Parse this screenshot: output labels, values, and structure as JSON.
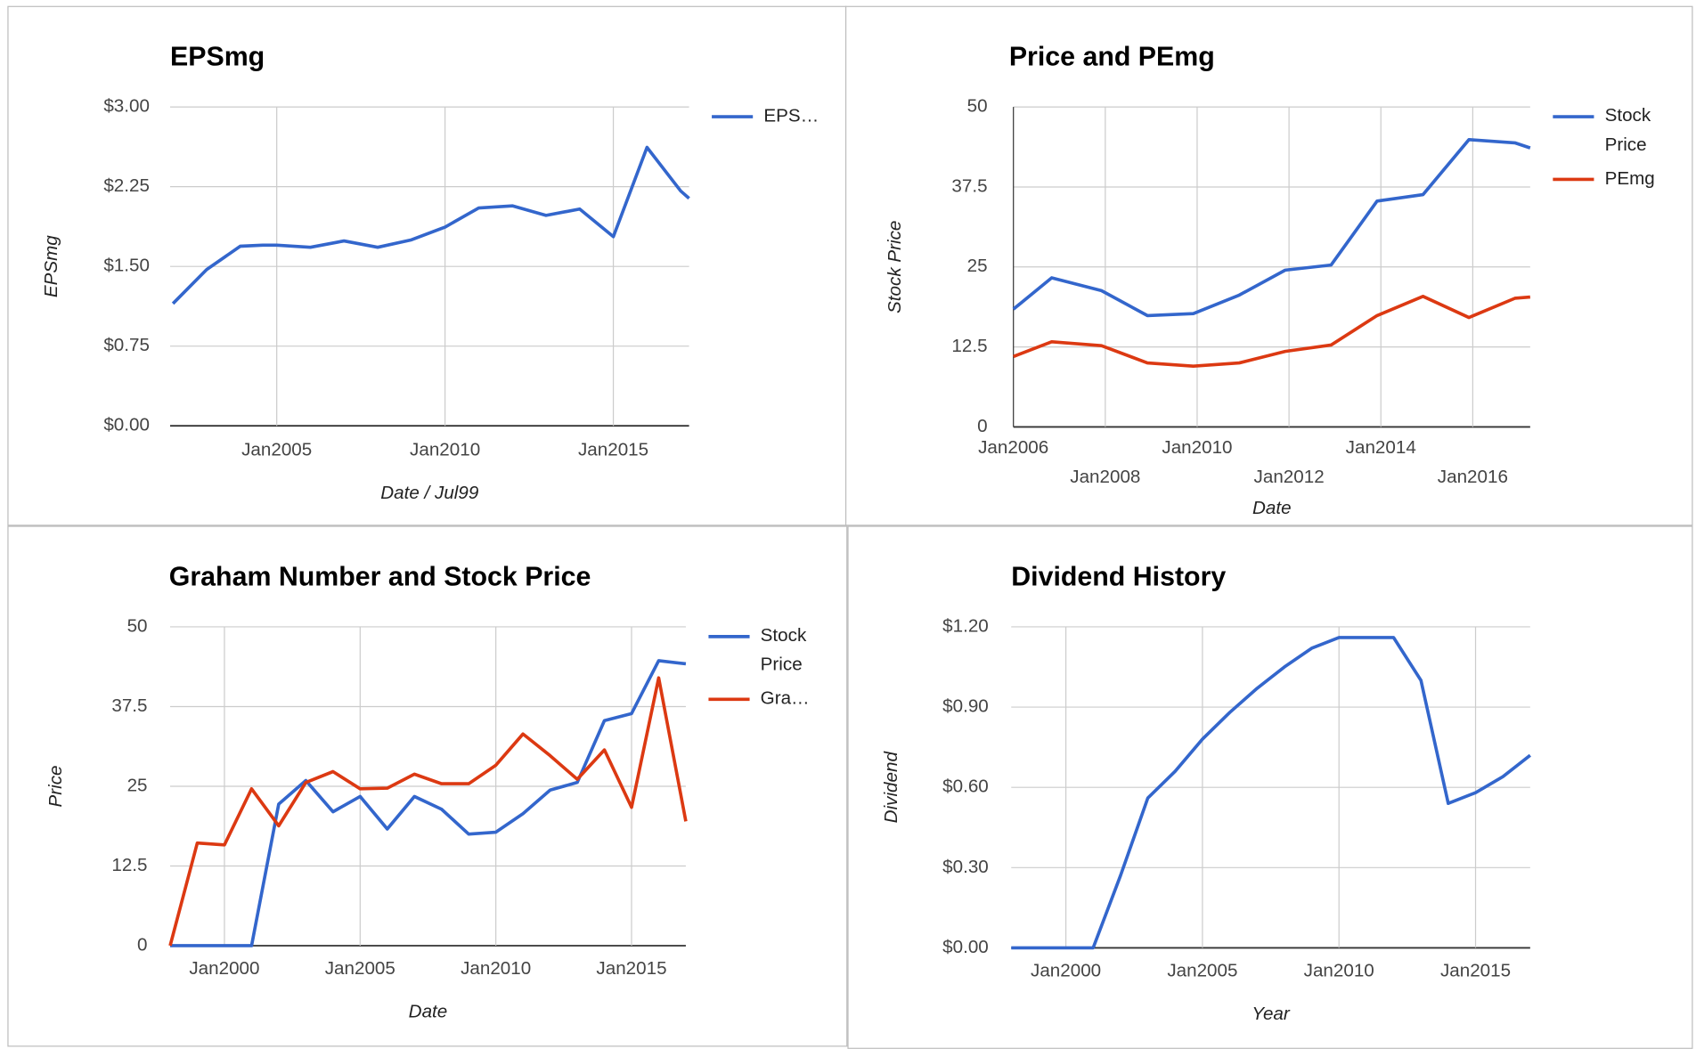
{
  "chart_data": [
    {
      "type": "line",
      "title": "EPSmg",
      "x_label": "Date / Jul99",
      "y_label": "EPSmg",
      "x": [
        "2001-12",
        "2002-12",
        "2003-12",
        "2004-08",
        "2005-01",
        "2006-01",
        "2007-01",
        "2008-01",
        "2009-01",
        "2010-01",
        "2011-01",
        "2012-01",
        "2013-01",
        "2014-01",
        "2015-01",
        "2016-01",
        "2017-01",
        "2017-04"
      ],
      "series": [
        {
          "name": "EPS…",
          "color": "#3366cc",
          "values": [
            1.15,
            1.47,
            1.69,
            1.7,
            1.7,
            1.68,
            1.74,
            1.68,
            1.75,
            1.87,
            2.05,
            2.07,
            1.98,
            2.04,
            1.78,
            2.62,
            2.21,
            2.14
          ]
        }
      ],
      "xlim": [
        "2001-11",
        "2017-04"
      ],
      "xticks": [
        {
          "value": "2005-01",
          "label": "Jan2005"
        },
        {
          "value": "2010-01",
          "label": "Jan2010"
        },
        {
          "value": "2015-01",
          "label": "Jan2015"
        }
      ],
      "ylim": [
        0,
        3
      ],
      "yticks": [
        {
          "value": 0,
          "label": "$0.00"
        },
        {
          "value": 0.75,
          "label": "$0.75"
        },
        {
          "value": 1.5,
          "label": "$1.50"
        },
        {
          "value": 2.25,
          "label": "$2.25"
        },
        {
          "value": 3,
          "label": "$3.00"
        }
      ],
      "grid": true,
      "legend": "right"
    },
    {
      "type": "line",
      "title": "Price and PEmg",
      "x_label": "Date",
      "y_label": "Stock Price",
      "x": [
        "2006-01",
        "2006-11",
        "2007-12",
        "2008-12",
        "2009-12",
        "2010-12",
        "2011-12",
        "2012-12",
        "2013-12",
        "2014-12",
        "2015-12",
        "2016-12",
        "2017-04"
      ],
      "series": [
        {
          "name": "Stock Price",
          "color": "#3366cc",
          "values": [
            18.4,
            23.3,
            21.3,
            17.4,
            17.7,
            20.6,
            24.5,
            25.3,
            35.3,
            36.3,
            44.9,
            44.4,
            43.6
          ]
        },
        {
          "name": "PEmg",
          "color": "#dc3912",
          "values": [
            11.0,
            13.3,
            12.7,
            10.0,
            9.5,
            10.0,
            11.8,
            12.8,
            17.4,
            20.4,
            17.1,
            20.1,
            20.3
          ]
        }
      ],
      "xlim": [
        "2006-01",
        "2017-04"
      ],
      "xticks": [
        {
          "value": "2006-01",
          "label": "Jan2006"
        },
        {
          "value": "2008-01",
          "label": "Jan2008"
        },
        {
          "value": "2010-01",
          "label": "Jan2010"
        },
        {
          "value": "2012-01",
          "label": "Jan2012"
        },
        {
          "value": "2014-01",
          "label": "Jan2014"
        },
        {
          "value": "2016-01",
          "label": "Jan2016"
        }
      ],
      "ylim": [
        0,
        50
      ],
      "yticks": [
        0,
        12.5,
        25,
        37.5,
        50
      ],
      "grid": true,
      "legend": "right"
    },
    {
      "type": "line",
      "title": "Graham Number and Stock Price",
      "x_label": "Date",
      "y_label": "Price",
      "x": [
        "1998-01",
        "1999-01",
        "2000-01",
        "2001-01",
        "2002-01",
        "2003-01",
        "2004-01",
        "2005-01",
        "2006-01",
        "2007-01",
        "2008-01",
        "2009-01",
        "2010-01",
        "2011-01",
        "2012-01",
        "2013-01",
        "2014-01",
        "2015-01",
        "2016-01",
        "2017-01"
      ],
      "series": [
        {
          "name": "Stock Price",
          "color": "#3366cc",
          "values": [
            0,
            0,
            0,
            0,
            22.2,
            25.9,
            21.0,
            23.4,
            18.3,
            23.4,
            21.4,
            17.5,
            17.8,
            20.7,
            24.4,
            25.6,
            35.3,
            36.4,
            44.7,
            44.2
          ]
        },
        {
          "name": "Gra…",
          "color": "#dc3912",
          "values": [
            0,
            16.1,
            15.8,
            24.6,
            18.8,
            25.6,
            27.3,
            24.6,
            24.7,
            26.9,
            25.4,
            25.4,
            28.3,
            33.2,
            29.8,
            26.1,
            30.7,
            21.7,
            42.0,
            19.5
          ]
        }
      ],
      "xlim": [
        "1998-01",
        "2017-01"
      ],
      "xticks": [
        {
          "value": "2000-01",
          "label": "Jan2000"
        },
        {
          "value": "2005-01",
          "label": "Jan2005"
        },
        {
          "value": "2010-01",
          "label": "Jan2010"
        },
        {
          "value": "2015-01",
          "label": "Jan2015"
        }
      ],
      "ylim": [
        0,
        50
      ],
      "yticks": [
        0,
        12.5,
        25,
        37.5,
        50
      ],
      "grid": true,
      "legend": "right"
    },
    {
      "type": "line",
      "title": "Dividend History",
      "x_label": "Year",
      "y_label": "Dividend",
      "x": [
        "1998-01",
        "1999-01",
        "2000-01",
        "2001-01",
        "2002-01",
        "2003-01",
        "2004-01",
        "2005-01",
        "2006-01",
        "2007-01",
        "2008-01",
        "2009-01",
        "2010-01",
        "2011-01",
        "2012-01",
        "2013-01",
        "2014-01",
        "2015-01",
        "2016-01",
        "2017-01"
      ],
      "series": [
        {
          "color": "#3366cc",
          "values": [
            0,
            0,
            0,
            0,
            0.27,
            0.56,
            0.66,
            0.78,
            0.88,
            0.97,
            1.05,
            1.12,
            1.16,
            1.16,
            1.16,
            1.0,
            0.54,
            0.58,
            0.64,
            0.72
          ]
        }
      ],
      "xlim": [
        "1998-01",
        "2017-01"
      ],
      "xticks": [
        {
          "value": "2000-01",
          "label": "Jan2000"
        },
        {
          "value": "2005-01",
          "label": "Jan2005"
        },
        {
          "value": "2010-01",
          "label": "Jan2010"
        },
        {
          "value": "2015-01",
          "label": "Jan2015"
        }
      ],
      "ylim": [
        0,
        1.2
      ],
      "yticks": [
        {
          "value": 0,
          "label": "$0.00"
        },
        {
          "value": 0.3,
          "label": "$0.30"
        },
        {
          "value": 0.6,
          "label": "$0.60"
        },
        {
          "value": 0.9,
          "label": "$0.90"
        },
        {
          "value": 1.2,
          "label": "$1.20"
        }
      ],
      "grid": true,
      "legend": "none"
    }
  ]
}
